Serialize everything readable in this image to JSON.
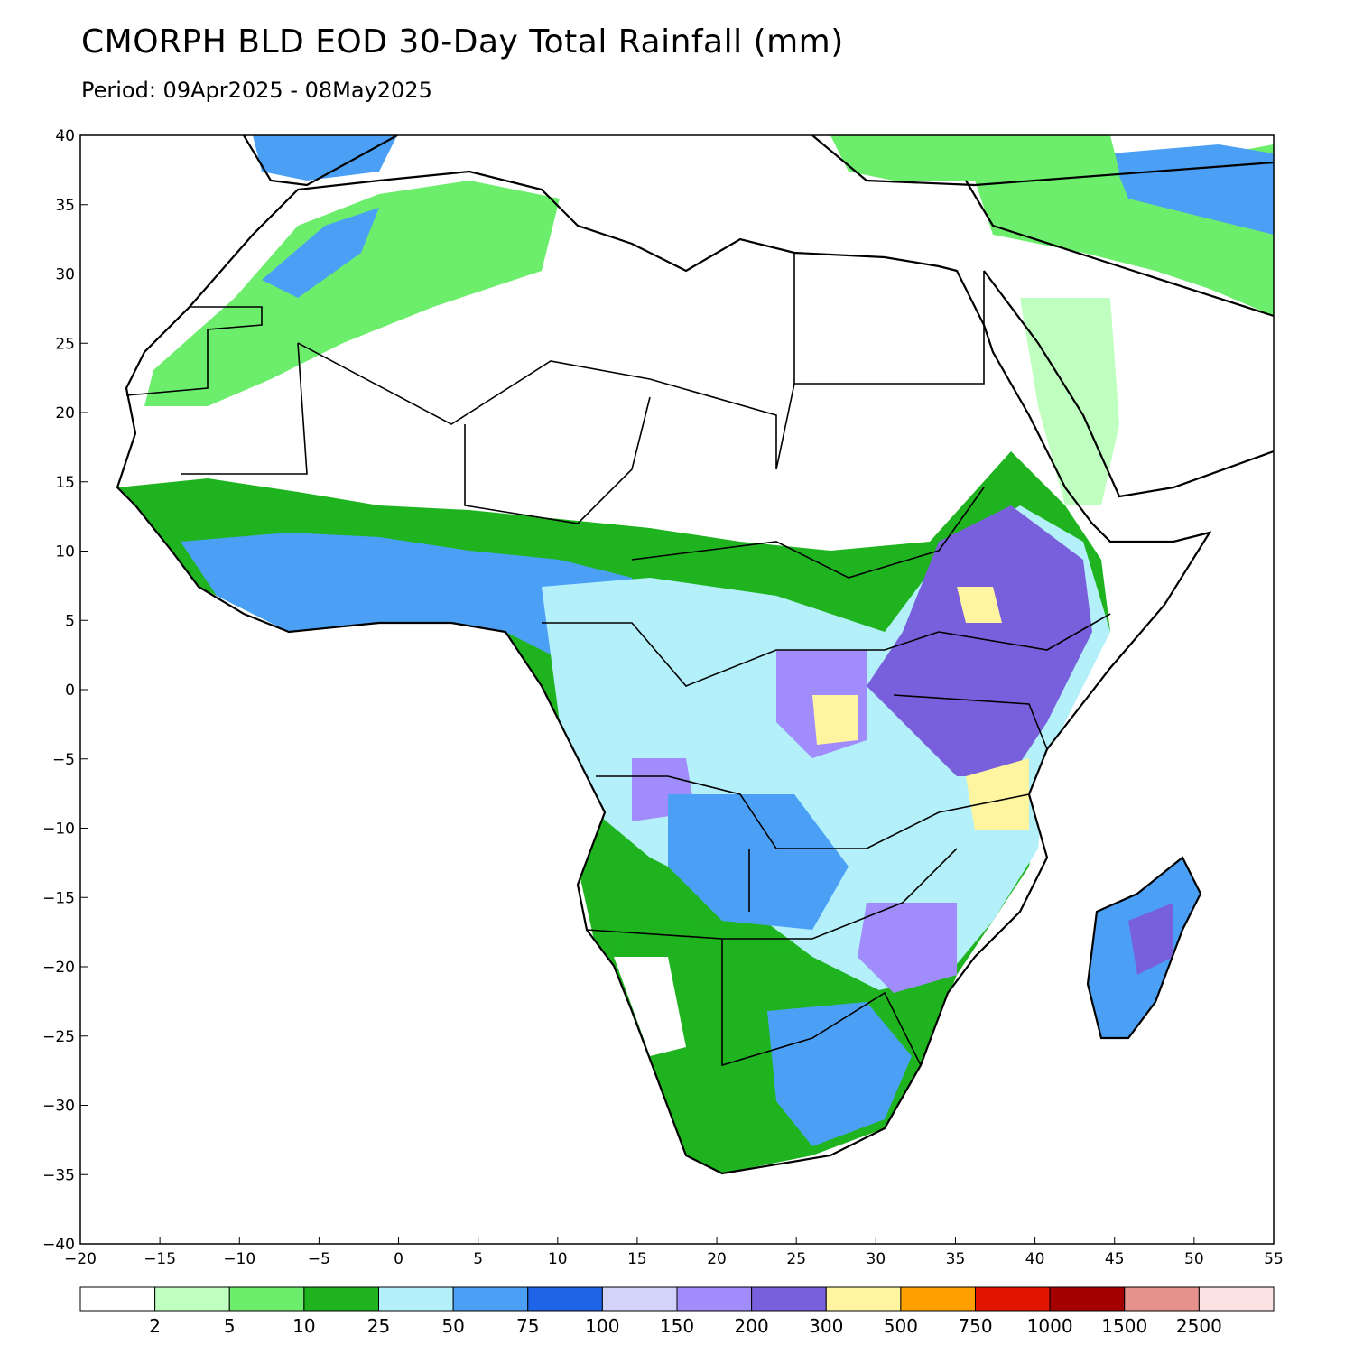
{
  "title": "CMORPH BLD EOD 30-Day Total Rainfall (mm)",
  "subtitle": "Period: 09Apr2025 - 08May2025",
  "map": {
    "lon_range": [
      -20,
      55
    ],
    "lat_range": [
      -40,
      40
    ],
    "x_ticks": [
      -20,
      -15,
      -10,
      -5,
      0,
      5,
      10,
      15,
      20,
      25,
      30,
      35,
      40,
      45,
      50,
      55
    ],
    "x_tick_labels": [
      "−20",
      "−15",
      "−10",
      "−5",
      "0",
      "5",
      "10",
      "15",
      "20",
      "25",
      "30",
      "35",
      "40",
      "45",
      "50",
      "55"
    ],
    "y_ticks": [
      40,
      35,
      30,
      25,
      20,
      15,
      10,
      5,
      0,
      -5,
      -10,
      -15,
      -20,
      -25,
      -30,
      -35,
      -40
    ],
    "y_tick_labels": [
      "40",
      "35",
      "30",
      "25",
      "20",
      "15",
      "10",
      "5",
      "0",
      "−5",
      "−10",
      "−15",
      "−20",
      "−25",
      "−30",
      "−35",
      "−40"
    ]
  },
  "colorbar": {
    "colors": [
      "#ffffff",
      "#bfffbf",
      "#6cee6c",
      "#1fb41f",
      "#b4f0fa",
      "#4ba0f5",
      "#1e64e6",
      "#d2d2fa",
      "#a08cfa",
      "#7860dc",
      "#fff5a0",
      "#ffa000",
      "#e11400",
      "#a50000",
      "#e6928c",
      "#fce3e3"
    ],
    "labels": [
      "2",
      "5",
      "10",
      "25",
      "50",
      "75",
      "100",
      "150",
      "200",
      "300",
      "500",
      "750",
      "1000",
      "1500",
      "2500"
    ]
  }
}
